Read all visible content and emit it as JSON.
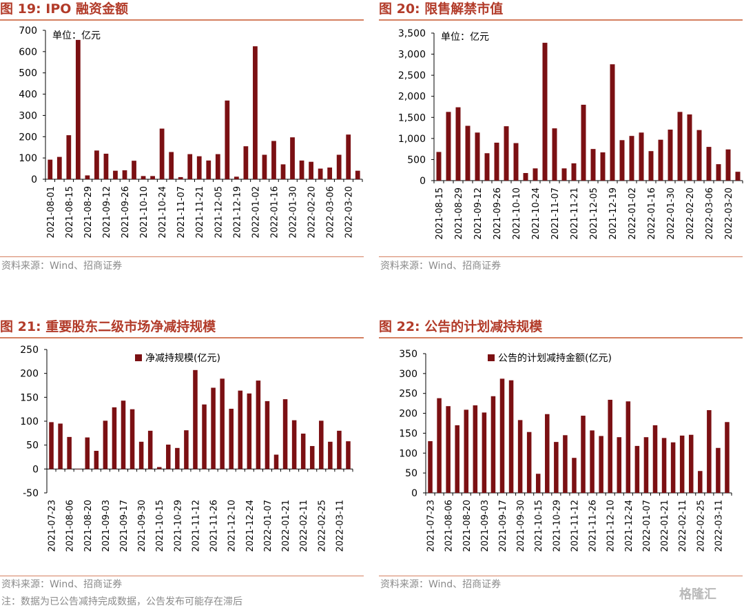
{
  "colors": {
    "bar": "#7B1013",
    "title": "#B23B29",
    "rule": "#D47E5F",
    "source": "#8a8a8a"
  },
  "watermark": "格隆汇",
  "footnote": "注：数据为已公告减持完成数据，公告发布可能存在滞后",
  "charts": [
    {
      "fig_title": "图 19:  IPO 融资金额",
      "source": "资料来源：Wind、招商证券",
      "unit_label": "单位：亿元",
      "legend_label": ""
    },
    {
      "fig_title": "图 20:  限售解禁市值",
      "source": "资料来源：Wind、招商证券",
      "unit_label": "单位：亿元",
      "legend_label": ""
    },
    {
      "fig_title": "图 21:  重要股东二级市场净减持规模",
      "source": "资料来源：Wind、招商证券",
      "unit_label": "",
      "legend_label": "净减持规模(亿元)"
    },
    {
      "fig_title": "图 22:  公告的计划减持规模",
      "source": "资料来源：Wind、招商证券",
      "unit_label": "",
      "legend_label": "公告的计划减持金额(亿元)"
    }
  ],
  "chart_data": [
    {
      "type": "bar",
      "title": "IPO 融资金额",
      "ylim": [
        0,
        700
      ],
      "yticks": [
        0,
        100,
        200,
        300,
        400,
        500,
        600,
        700
      ],
      "ytick_labels": [
        "0",
        "100",
        "200",
        "300",
        "400",
        "500",
        "600",
        "700"
      ],
      "grid": false,
      "n": 34,
      "values": [
        92,
        105,
        207,
        655,
        18,
        135,
        120,
        40,
        42,
        87,
        15,
        15,
        238,
        128,
        10,
        118,
        108,
        88,
        118,
        370,
        12,
        155,
        625,
        115,
        180,
        70,
        197,
        88,
        82,
        50,
        55,
        115,
        210,
        40
      ],
      "label_step": 2,
      "tick_labels": [
        "2021-08-01",
        "2021-08-15",
        "2021-08-29",
        "2021-09-12",
        "2021-09-26",
        "2021-10-10",
        "2021-10-24",
        "2021-11-07",
        "2021-11-21",
        "2021-12-05",
        "2021-12-19",
        "2022-01-02",
        "2022-01-16",
        "2022-01-30",
        "2022-02-20",
        "2022-03-06",
        "2022-03-20"
      ]
    },
    {
      "type": "bar",
      "title": "限售解禁市值",
      "ylim": [
        0,
        3500
      ],
      "yticks": [
        0,
        500,
        1000,
        1500,
        2000,
        2500,
        3000,
        3500
      ],
      "ytick_labels": [
        "0",
        "500",
        "1,000",
        "1,500",
        "2,000",
        "2,500",
        "3,000",
        "3,500"
      ],
      "grid": false,
      "n": 32,
      "values": [
        680,
        1630,
        1740,
        1300,
        1140,
        650,
        900,
        1290,
        890,
        180,
        290,
        3270,
        1240,
        290,
        410,
        1800,
        750,
        670,
        2760,
        960,
        1060,
        1140,
        700,
        970,
        1210,
        1630,
        1570,
        1200,
        800,
        390,
        740,
        210
      ],
      "label_step": 2,
      "tick_labels": [
        "2021-08-15",
        "2021-08-29",
        "2021-09-12",
        "2021-09-26",
        "2021-10-10",
        "2021-10-24",
        "2021-11-07",
        "2021-11-21",
        "2021-12-05",
        "2021-12-19",
        "2022-01-02",
        "2022-01-16",
        "2022-01-30",
        "2022-02-20",
        "2022-03-06",
        "2022-03-20"
      ]
    },
    {
      "type": "bar",
      "title": "重要股东二级市场净减持规模",
      "series": [
        {
          "name": "净减持规模(亿元)"
        }
      ],
      "ylim": [
        -50,
        250
      ],
      "yticks": [
        -50,
        0,
        50,
        100,
        150,
        200,
        250
      ],
      "ytick_labels": [
        "-50",
        "0",
        "50",
        "100",
        "150",
        "200",
        "250"
      ],
      "grid": false,
      "legend": "top-center",
      "n": 34,
      "values": [
        98,
        95,
        67,
        0,
        66,
        38,
        101,
        129,
        143,
        125,
        57,
        80,
        4,
        51,
        44,
        81,
        207,
        135,
        170,
        189,
        126,
        164,
        158,
        185,
        142,
        30,
        146,
        102,
        74,
        48,
        101,
        57,
        80,
        58
      ],
      "label_step": 2,
      "tick_labels": [
        "2021-07-23",
        "2021-08-06",
        "2021-08-20",
        "2021-09-03",
        "2021-09-17",
        "2021-09-30",
        "2021-10-15",
        "2021-10-29",
        "2021-11-12",
        "2021-11-26",
        "2021-12-10",
        "2021-12-24",
        "2022-01-07",
        "2022-01-21",
        "2022-02-11",
        "2022-02-25",
        "2022-03-11"
      ]
    },
    {
      "type": "bar",
      "title": "公告的计划减持规模",
      "series": [
        {
          "name": "公告的计划减持金额(亿元)"
        }
      ],
      "ylim": [
        0,
        350
      ],
      "yticks": [
        0,
        50,
        100,
        150,
        200,
        250,
        300,
        350
      ],
      "ytick_labels": [
        "0",
        "50",
        "100",
        "150",
        "200",
        "250",
        "300",
        "350"
      ],
      "grid": false,
      "legend": "top-center",
      "n": 34,
      "values": [
        130,
        238,
        218,
        170,
        209,
        220,
        202,
        243,
        287,
        283,
        183,
        153,
        48,
        198,
        128,
        145,
        88,
        194,
        157,
        143,
        234,
        140,
        230,
        118,
        140,
        170,
        138,
        127,
        144,
        146,
        55,
        208,
        113,
        178
      ],
      "label_step": 2,
      "tick_labels": [
        "2021-07-23",
        "2021-08-06",
        "2021-08-20",
        "2021-09-03",
        "2021-09-17",
        "2021-09-30",
        "2021-10-15",
        "2021-10-29",
        "2021-11-12",
        "2021-11-26",
        "2021-12-10",
        "2021-12-24",
        "2022-01-07",
        "2022-01-21",
        "2022-02-11",
        "2022-02-25",
        "2022-03-11"
      ]
    }
  ]
}
